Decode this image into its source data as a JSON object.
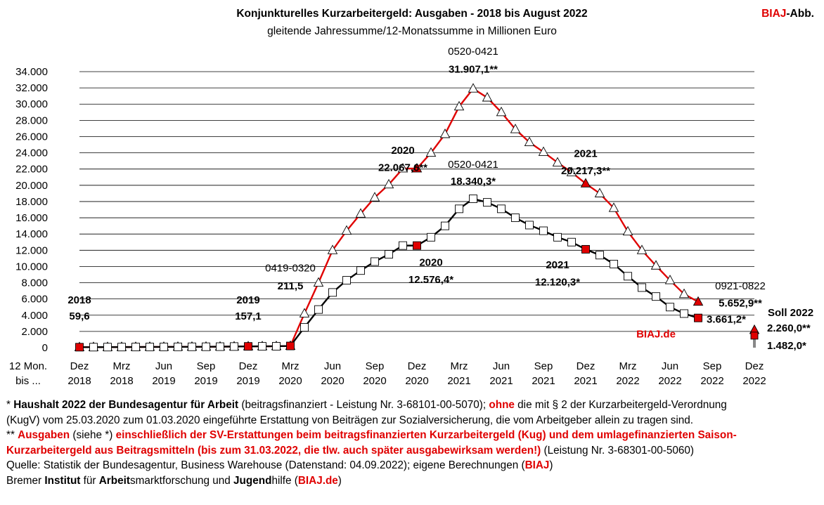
{
  "header": {
    "title": "Konjunkturelles Kurzarbeitergeld:  Ausgaben - 2018 bis August 2022",
    "subtitle": "gleitende  Jahressumme/12-Monatssumme in Millionen Euro",
    "brand_red": "BIAJ",
    "brand_suffix": "-Abb."
  },
  "colors": {
    "red": "#e00000",
    "black": "#000000",
    "grid": "#000000"
  },
  "chart_data": {
    "type": "line",
    "y_unit_label": "12 Mon. bis ...",
    "ylim": [
      0,
      34000
    ],
    "y_ticks": [
      "0",
      "2.000",
      "4.000",
      "6.000",
      "8.000",
      "10.000",
      "12.000",
      "14.000",
      "16.000",
      "18.000",
      "20.000",
      "22.000",
      "24.000",
      "26.000",
      "28.000",
      "30.000",
      "32.000",
      "34.000"
    ],
    "y_tick_values": [
      0,
      2000,
      4000,
      6000,
      8000,
      10000,
      12000,
      14000,
      16000,
      18000,
      20000,
      22000,
      24000,
      26000,
      28000,
      30000,
      32000,
      34000
    ],
    "grid": true,
    "x_ticks": [
      {
        "month": "Dez",
        "year": "2018"
      },
      {
        "month": "Mrz",
        "year": "2018"
      },
      {
        "month": "Jun",
        "year": "2019"
      },
      {
        "month": "Sep",
        "year": "2019"
      },
      {
        "month": "Dez",
        "year": "2019"
      },
      {
        "month": "Mrz",
        "year": "2020"
      },
      {
        "month": "Jun",
        "year": "2020"
      },
      {
        "month": "Sep",
        "year": "2020"
      },
      {
        "month": "Dez",
        "year": "2020"
      },
      {
        "month": "Mrz",
        "year": "2021"
      },
      {
        "month": "Jun",
        "year": "2021"
      },
      {
        "month": "Sep",
        "year": "2021"
      },
      {
        "month": "Dez",
        "year": "2021"
      },
      {
        "month": "Mrz",
        "year": "2022"
      },
      {
        "month": "Jun",
        "year": "2022"
      },
      {
        "month": "Sep",
        "year": "2022"
      },
      {
        "month": "Dez",
        "year": "2022"
      }
    ],
    "x": [
      "2018-12",
      "2019-01",
      "2019-02",
      "2019-03",
      "2019-04",
      "2019-05",
      "2019-06",
      "2019-07",
      "2019-08",
      "2019-09",
      "2019-10",
      "2019-11",
      "2019-12",
      "2020-01",
      "2020-02",
      "2020-03",
      "2020-04",
      "2020-05",
      "2020-06",
      "2020-07",
      "2020-08",
      "2020-09",
      "2020-10",
      "2020-11",
      "2020-12",
      "2021-01",
      "2021-02",
      "2021-03",
      "2021-04",
      "2021-05",
      "2021-06",
      "2021-07",
      "2021-08",
      "2021-09",
      "2021-10",
      "2021-11",
      "2021-12",
      "2022-01",
      "2022-02",
      "2022-03",
      "2022-04",
      "2022-05",
      "2022-06",
      "2022-07",
      "2022-08"
    ],
    "series": [
      {
        "color": "#e00000",
        "marker": "triangle",
        "highlight_indices": [
          0,
          12,
          15,
          24,
          36,
          44
        ],
        "values": [
          59.6,
          65,
          70,
          76,
          83,
          88,
          94,
          100,
          106,
          113,
          125,
          140,
          157.1,
          165,
          175,
          211.5,
          4200,
          8000,
          12000,
          14400,
          16500,
          18500,
          20100,
          22067.6,
          22067.6,
          24000,
          26300,
          29700,
          31907.1,
          30800,
          29000,
          26900,
          25300,
          24100,
          22800,
          21600,
          20217.3,
          19000,
          17200,
          14300,
          12000,
          10100,
          8300,
          6600,
          5652.9
        ]
      },
      {
        "color": "#000000",
        "marker": "square",
        "highlight_indices": [
          0,
          12,
          15,
          24,
          36,
          44
        ],
        "values": [
          59.6,
          65,
          70,
          76,
          83,
          88,
          94,
          100,
          106,
          113,
          125,
          140,
          157.1,
          165,
          175,
          211.5,
          2500,
          4700,
          6800,
          8300,
          9500,
          10600,
          11500,
          12576.4,
          12576.4,
          13600,
          15000,
          17100,
          18340.3,
          17900,
          17100,
          16000,
          15100,
          14400,
          13600,
          13000,
          12120.3,
          11400,
          10300,
          8800,
          7400,
          6300,
          5000,
          4200,
          3661.2
        ]
      }
    ],
    "soll_2022": {
      "label": "Soll 2022",
      "x": "2022-12",
      "red_value": 2260.0,
      "black_value": 1482.0,
      "red_label": "2.260,0**",
      "black_label": "1.482,0*"
    },
    "annotations": [
      {
        "text": "2018",
        "bold": true,
        "x": "2018-12",
        "y": 5900
      },
      {
        "text": "59,6",
        "bold": true,
        "x": "2018-12",
        "y": 3900
      },
      {
        "text": "2019",
        "bold": true,
        "x": "2019-12",
        "y": 5900
      },
      {
        "text": "157,1",
        "bold": true,
        "x": "2019-12",
        "y": 3900
      },
      {
        "text": "0419-0320",
        "bold": false,
        "x": "2020-03",
        "y": 9800
      },
      {
        "text": "211,5",
        "bold": true,
        "x": "2020-03",
        "y": 7600
      },
      {
        "text": "2020",
        "bold": true,
        "x": "2020-11",
        "y": 24300
      },
      {
        "text": "22.067,6**",
        "bold": true,
        "x": "2020-11",
        "y": 22200
      },
      {
        "text": "0520-0421",
        "bold": false,
        "x": "2021-04",
        "y": 36500
      },
      {
        "text": "31.907,1**",
        "bold": true,
        "x": "2021-04",
        "y": 34300
      },
      {
        "text": "0520-0421",
        "bold": false,
        "x": "2021-04",
        "y": 22600
      },
      {
        "text": "18.340,3*",
        "bold": true,
        "x": "2021-04",
        "y": 20500
      },
      {
        "text": "2020",
        "bold": true,
        "x": "2021-01",
        "y": 10500
      },
      {
        "text": "12.576,4*",
        "bold": true,
        "x": "2021-01",
        "y": 8400
      },
      {
        "text": "2021",
        "bold": true,
        "x": "2021-12",
        "y": 23900
      },
      {
        "text": "20.217,3**",
        "bold": true,
        "x": "2021-12",
        "y": 21800
      },
      {
        "text": "2021",
        "bold": true,
        "x": "2021-10",
        "y": 10200
      },
      {
        "text": "12.120,3*",
        "bold": true,
        "x": "2021-10",
        "y": 8100
      },
      {
        "text": "0921-0822",
        "bold": false,
        "x": "2022-11",
        "y": 7600
      },
      {
        "text": "5.652,9**",
        "bold": true,
        "x": "2022-11",
        "y": 5500
      },
      {
        "text": "3.661,2*",
        "bold": true,
        "x": "2022-10",
        "y": 3500
      },
      {
        "text": "BIAJ.de",
        "bold": true,
        "red": true,
        "x": "2022-05",
        "y": 1700
      }
    ]
  },
  "footnotes": {
    "line1": {
      "star": "* ",
      "bold1": "Haushalt 2022 der Bundesagentur für Arbeit",
      "text1": " (beitragsfinanziert - Leistung Nr. 3-68101-00-5070); ",
      "red1": "ohne",
      "text2": " die mit § 2 der Kurzarbeitergeld-Verordnung"
    },
    "line2": "(KugV) vom 25.03.2020 zum 01.03.2020 eingeführte Erstattung von Beiträgen zur Sozialversicherung, die vom Arbeitgeber allein zu tragen sind.",
    "line3": {
      "star": "** ",
      "red1": "Ausgaben",
      "text1": " (siehe *) ",
      "red2": "einschließlich der SV-Erstattungen beim beitragsfinanzierten Kurzarbeitergeld (Kug) und dem umlagefinanzierten Saison-"
    },
    "line4": {
      "red1": "Kurzarbeitergeld aus Beitragsmitteln (bis zum 31.03.2022, die tlw. auch später ausgabewirksam werden!)",
      "text1": " (Leistung Nr. 3-68301-00-5060)"
    },
    "line5": {
      "text1": "Quelle: Statistik der Bundesagentur, Business Warehouse (Datenstand: 04.09.2022); eigene Berechnungen (",
      "red1": "BIAJ",
      "text2": ")"
    },
    "line6": {
      "t1": "Bremer ",
      "b1": "Institut",
      "t2": " für ",
      "b2": "Arbeit",
      "t3": "smarktforschung und ",
      "b3": "Jugend",
      "t4": "hilfe (",
      "r1": "BIAJ.de",
      "t5": ")"
    }
  }
}
